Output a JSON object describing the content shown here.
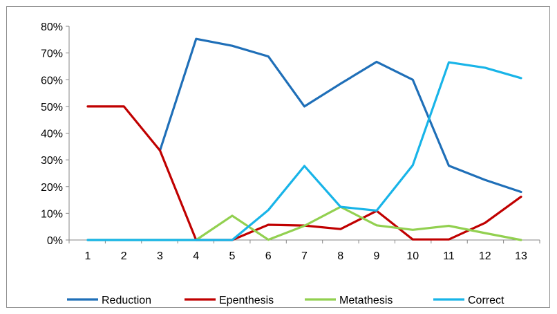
{
  "chart_data": {
    "type": "line",
    "x": [
      "1",
      "2",
      "3",
      "4",
      "5",
      "6",
      "7",
      "8",
      "9",
      "10",
      "11",
      "12",
      "13"
    ],
    "ylim": [
      0,
      80
    ],
    "yticks": [
      0,
      10,
      20,
      30,
      40,
      50,
      60,
      70,
      80
    ],
    "ytick_labels": [
      "0%",
      "10%",
      "20%",
      "30%",
      "40%",
      "50%",
      "60%",
      "70%",
      "80%"
    ],
    "grid": false,
    "legend_position": "bottom",
    "series": [
      {
        "name": "Reduction",
        "color": "#1f6fb8",
        "start_index": 2,
        "values": [
          null,
          null,
          33.5,
          75.3,
          72.7,
          68.7,
          50.0,
          58.5,
          66.7,
          60.0,
          27.8,
          22.5,
          18.0
        ]
      },
      {
        "name": "Epenthesis",
        "color": "#c00000",
        "values": [
          50.0,
          50.0,
          33.5,
          0.0,
          0.0,
          5.7,
          5.4,
          4.1,
          10.9,
          0.2,
          0.2,
          6.4,
          16.2
        ]
      },
      {
        "name": "Metathesis",
        "color": "#92d050",
        "values": [
          0.0,
          0.0,
          0.0,
          0.0,
          9.1,
          0.1,
          5.3,
          12.4,
          5.5,
          3.8,
          5.3,
          2.6,
          0.0
        ]
      },
      {
        "name": "Correct",
        "color": "#18b4e8",
        "values": [
          0.0,
          0.0,
          0.0,
          0.0,
          0.0,
          11.2,
          27.7,
          12.4,
          11.0,
          28.0,
          66.5,
          64.5,
          60.6
        ]
      }
    ]
  }
}
